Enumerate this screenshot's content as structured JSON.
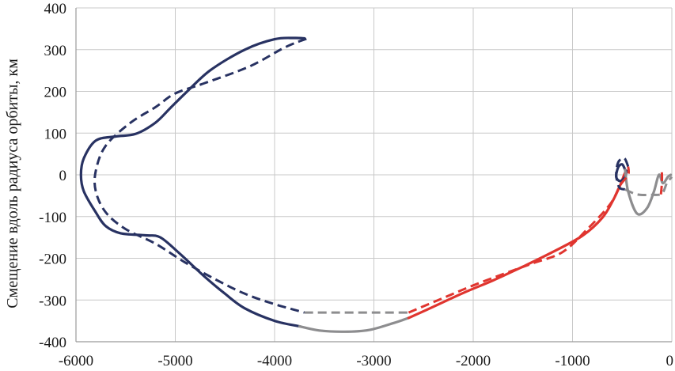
{
  "chart_data": {
    "type": "line",
    "title": "",
    "xlabel": "",
    "ylabel": "Смещение вдоль радиуса орбиты, км",
    "xlim": [
      -6000,
      0
    ],
    "ylim": [
      -400,
      400
    ],
    "x_ticks": [
      "-6000",
      "-5000",
      "-4000",
      "-3000",
      "-2000",
      "-1000",
      "0"
    ],
    "y_ticks": [
      "400",
      "300",
      "200",
      "100",
      "0",
      "-100",
      "-200",
      "-300",
      "-400"
    ],
    "grid": true,
    "legend": "none",
    "colors": {
      "navy": "#283262",
      "red": "#e0352f",
      "gray": "#8d8d8f",
      "grid": "#c8c8c8",
      "axis": "#9a9a9a"
    },
    "series": [
      {
        "style": "solid",
        "color": "navy",
        "points": [
          [
            -3700,
            327
          ],
          [
            -3800,
            328
          ],
          [
            -4000,
            325
          ],
          [
            -4300,
            300
          ],
          [
            -4650,
            250
          ],
          [
            -4900,
            195
          ],
          [
            -5050,
            160
          ],
          [
            -5200,
            125
          ],
          [
            -5400,
            98
          ],
          [
            -5600,
            92
          ],
          [
            -5800,
            82
          ],
          [
            -5920,
            40
          ],
          [
            -5950,
            0
          ],
          [
            -5920,
            -40
          ],
          [
            -5800,
            -90
          ],
          [
            -5700,
            -123
          ],
          [
            -5550,
            -140
          ],
          [
            -5300,
            -145
          ],
          [
            -5150,
            -150
          ],
          [
            -4950,
            -190
          ],
          [
            -4700,
            -245
          ],
          [
            -4500,
            -285
          ],
          [
            -4300,
            -320
          ],
          [
            -4000,
            -350
          ],
          [
            -3750,
            -363
          ]
        ]
      },
      {
        "style": "solid",
        "color": "gray",
        "points": [
          [
            -3750,
            -363
          ],
          [
            -3550,
            -373
          ],
          [
            -3300,
            -376
          ],
          [
            -3050,
            -372
          ],
          [
            -2800,
            -355
          ],
          [
            -2650,
            -343
          ]
        ]
      },
      {
        "style": "solid",
        "color": "red",
        "points": [
          [
            -2650,
            -343
          ],
          [
            -2400,
            -316
          ],
          [
            -2100,
            -283
          ],
          [
            -1800,
            -253
          ],
          [
            -1500,
            -220
          ],
          [
            -1200,
            -185
          ],
          [
            -900,
            -146
          ],
          [
            -700,
            -103
          ],
          [
            -590,
            -60
          ],
          [
            -520,
            -25
          ],
          [
            -480,
            0
          ],
          [
            -460,
            10
          ]
        ]
      },
      {
        "style": "solid",
        "color": "navy",
        "points": [
          [
            -460,
            10
          ],
          [
            -470,
            -5
          ],
          [
            -520,
            -15
          ],
          [
            -560,
            -5
          ],
          [
            -540,
            18
          ],
          [
            -500,
            25
          ],
          [
            -470,
            12
          ]
        ]
      },
      {
        "style": "solid",
        "color": "gray",
        "points": [
          [
            -470,
            12
          ],
          [
            -440,
            -40
          ],
          [
            -350,
            -93
          ],
          [
            -250,
            -80
          ],
          [
            -180,
            -40
          ],
          [
            -130,
            0
          ],
          [
            -90,
            -20
          ],
          [
            -40,
            -5
          ],
          [
            -10,
            0
          ]
        ]
      },
      {
        "style": "dashed",
        "color": "navy",
        "points": [
          [
            -3680,
            326
          ],
          [
            -3900,
            305
          ],
          [
            -4250,
            260
          ],
          [
            -4700,
            220
          ],
          [
            -5000,
            195
          ],
          [
            -5200,
            162
          ],
          [
            -5450,
            125
          ],
          [
            -5700,
            70
          ],
          [
            -5800,
            10
          ],
          [
            -5800,
            -40
          ],
          [
            -5700,
            -90
          ],
          [
            -5500,
            -130
          ],
          [
            -5200,
            -165
          ],
          [
            -4900,
            -210
          ],
          [
            -4600,
            -250
          ],
          [
            -4300,
            -285
          ],
          [
            -4000,
            -310
          ],
          [
            -3700,
            -330
          ]
        ]
      },
      {
        "style": "dashed",
        "color": "gray",
        "points": [
          [
            -3700,
            -330
          ],
          [
            -3400,
            -330
          ],
          [
            -3000,
            -330
          ],
          [
            -2650,
            -330
          ]
        ]
      },
      {
        "style": "dashed",
        "color": "red",
        "points": [
          [
            -2650,
            -330
          ],
          [
            -2300,
            -295
          ],
          [
            -2000,
            -265
          ],
          [
            -1700,
            -238
          ],
          [
            -1400,
            -212
          ],
          [
            -1100,
            -185
          ],
          [
            -850,
            -130
          ],
          [
            -620,
            -70
          ],
          [
            -520,
            -25
          ],
          [
            -440,
            0
          ],
          [
            -440,
            20
          ]
        ]
      },
      {
        "style": "dashed",
        "color": "navy",
        "points": [
          [
            -440,
            20
          ],
          [
            -480,
            40
          ],
          [
            -540,
            30
          ],
          [
            -560,
            0
          ],
          [
            -530,
            -30
          ],
          [
            -470,
            -35
          ]
        ]
      },
      {
        "style": "dashed",
        "color": "gray",
        "points": [
          [
            -470,
            -35
          ],
          [
            -350,
            -47
          ],
          [
            -200,
            -48
          ],
          [
            -100,
            -45
          ],
          [
            -50,
            -20
          ],
          [
            0,
            -5
          ]
        ]
      },
      {
        "style": "dashed",
        "color": "red",
        "points": [
          [
            -110,
            -47
          ],
          [
            -100,
            -20
          ],
          [
            -100,
            5
          ],
          [
            -105,
            15
          ]
        ]
      }
    ]
  }
}
